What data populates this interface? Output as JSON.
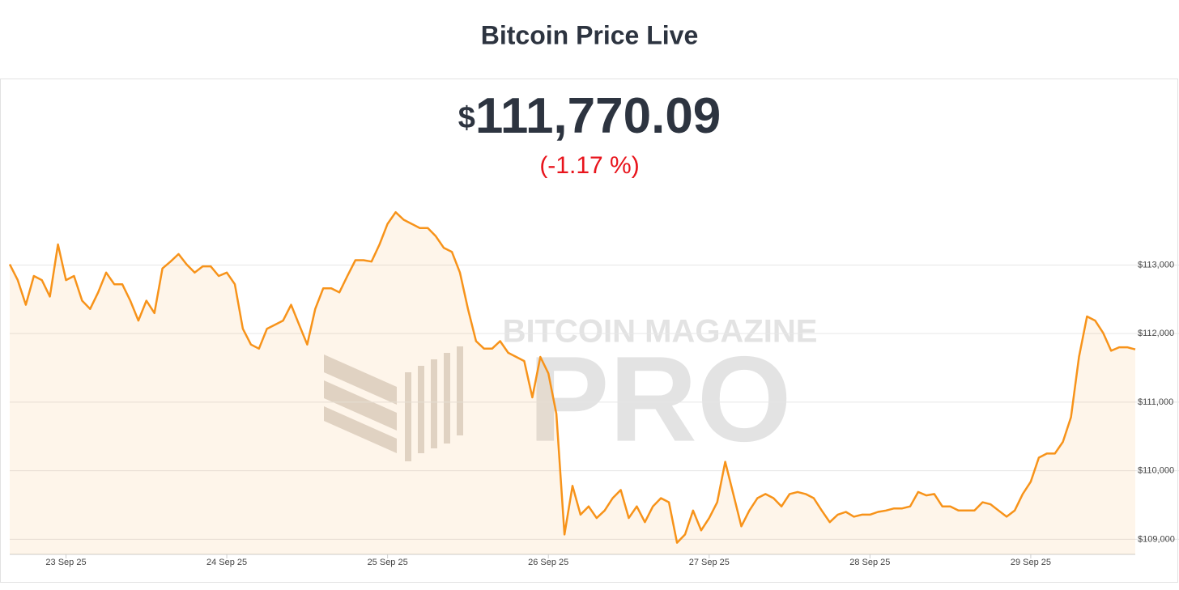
{
  "title": "Bitcoin Price Live",
  "price": {
    "symbol": "$",
    "amount": "111,770.09",
    "change": "(-1.17 %)"
  },
  "watermark": {
    "brand": "BITCOIN MAGAZINE",
    "product": "PRO"
  },
  "chart_data": {
    "type": "line",
    "area": true,
    "grid": true,
    "categories": [
      null,
      null,
      null,
      null,
      null,
      null,
      null,
      "23 Sep 25",
      null,
      null,
      null,
      null,
      null,
      null,
      null,
      null,
      null,
      null,
      null,
      null,
      null,
      null,
      null,
      null,
      null,
      null,
      null,
      "24 Sep 25",
      null,
      null,
      null,
      null,
      null,
      null,
      null,
      null,
      null,
      null,
      null,
      null,
      null,
      null,
      null,
      null,
      null,
      null,
      null,
      "25 Sep 25",
      null,
      null,
      null,
      null,
      null,
      null,
      null,
      null,
      null,
      null,
      null,
      null,
      null,
      null,
      null,
      null,
      null,
      null,
      null,
      "26 Sep 25",
      null,
      null,
      null,
      null,
      null,
      null,
      null,
      null,
      null,
      null,
      null,
      null,
      null,
      null,
      null,
      null,
      null,
      null,
      null,
      "27 Sep 25",
      null,
      null,
      null,
      null,
      null,
      null,
      null,
      null,
      null,
      null,
      null,
      null,
      null,
      null,
      null,
      null,
      null,
      null,
      null,
      "28 Sep 25",
      null,
      null,
      null,
      null,
      null,
      null,
      null,
      null,
      null,
      null,
      null,
      null,
      null,
      null,
      null,
      null,
      null,
      null,
      null,
      "29 Sep 25",
      null,
      null,
      null,
      null,
      null,
      null,
      null,
      null,
      null,
      null,
      null,
      null,
      null
    ],
    "series": [
      {
        "color": "#f7931a",
        "values": [
          113010,
          112780,
          112420,
          112840,
          112780,
          112540,
          113300,
          112780,
          112840,
          112480,
          112360,
          112600,
          112890,
          112720,
          112720,
          112480,
          112190,
          112480,
          112300,
          112950,
          113050,
          113160,
          113010,
          112890,
          112980,
          112980,
          112840,
          112890,
          112720,
          112070,
          111840,
          111780,
          112070,
          112130,
          112190,
          112420,
          112130,
          111840,
          112360,
          112660,
          112660,
          112600,
          112840,
          113070,
          113070,
          113050,
          113300,
          113600,
          113770,
          113660,
          113600,
          113540,
          113540,
          113420,
          113250,
          113190,
          112890,
          112360,
          111890,
          111780,
          111780,
          111890,
          111720,
          111660,
          111600,
          111070,
          111660,
          111420,
          110830,
          109070,
          109780,
          109360,
          109480,
          109310,
          109420,
          109600,
          109720,
          109310,
          109480,
          109250,
          109480,
          109600,
          109540,
          108950,
          109070,
          109420,
          109130,
          109310,
          109540,
          110130,
          109660,
          109190,
          109420,
          109600,
          109660,
          109600,
          109480,
          109660,
          109690,
          109660,
          109600,
          109420,
          109250,
          109360,
          109400,
          109330,
          109360,
          109360,
          109400,
          109420,
          109450,
          109450,
          109480,
          109690,
          109640,
          109660,
          109480,
          109480,
          109420,
          109420,
          109420,
          109540,
          109510,
          109420,
          109330,
          109420,
          109660,
          109840,
          110190,
          110250,
          110250,
          110420,
          110780,
          111660,
          112250,
          112190,
          112010,
          111750,
          111800,
          111800,
          111770
        ]
      }
    ],
    "ylim": [
      108780,
      114150
    ],
    "yticks": [
      {
        "value": 109000,
        "label": "$109,000"
      },
      {
        "value": 110000,
        "label": "$110,000"
      },
      {
        "value": 111000,
        "label": "$111,000"
      },
      {
        "value": 112000,
        "label": "$112,000"
      },
      {
        "value": 113000,
        "label": "$113,000"
      }
    ]
  }
}
